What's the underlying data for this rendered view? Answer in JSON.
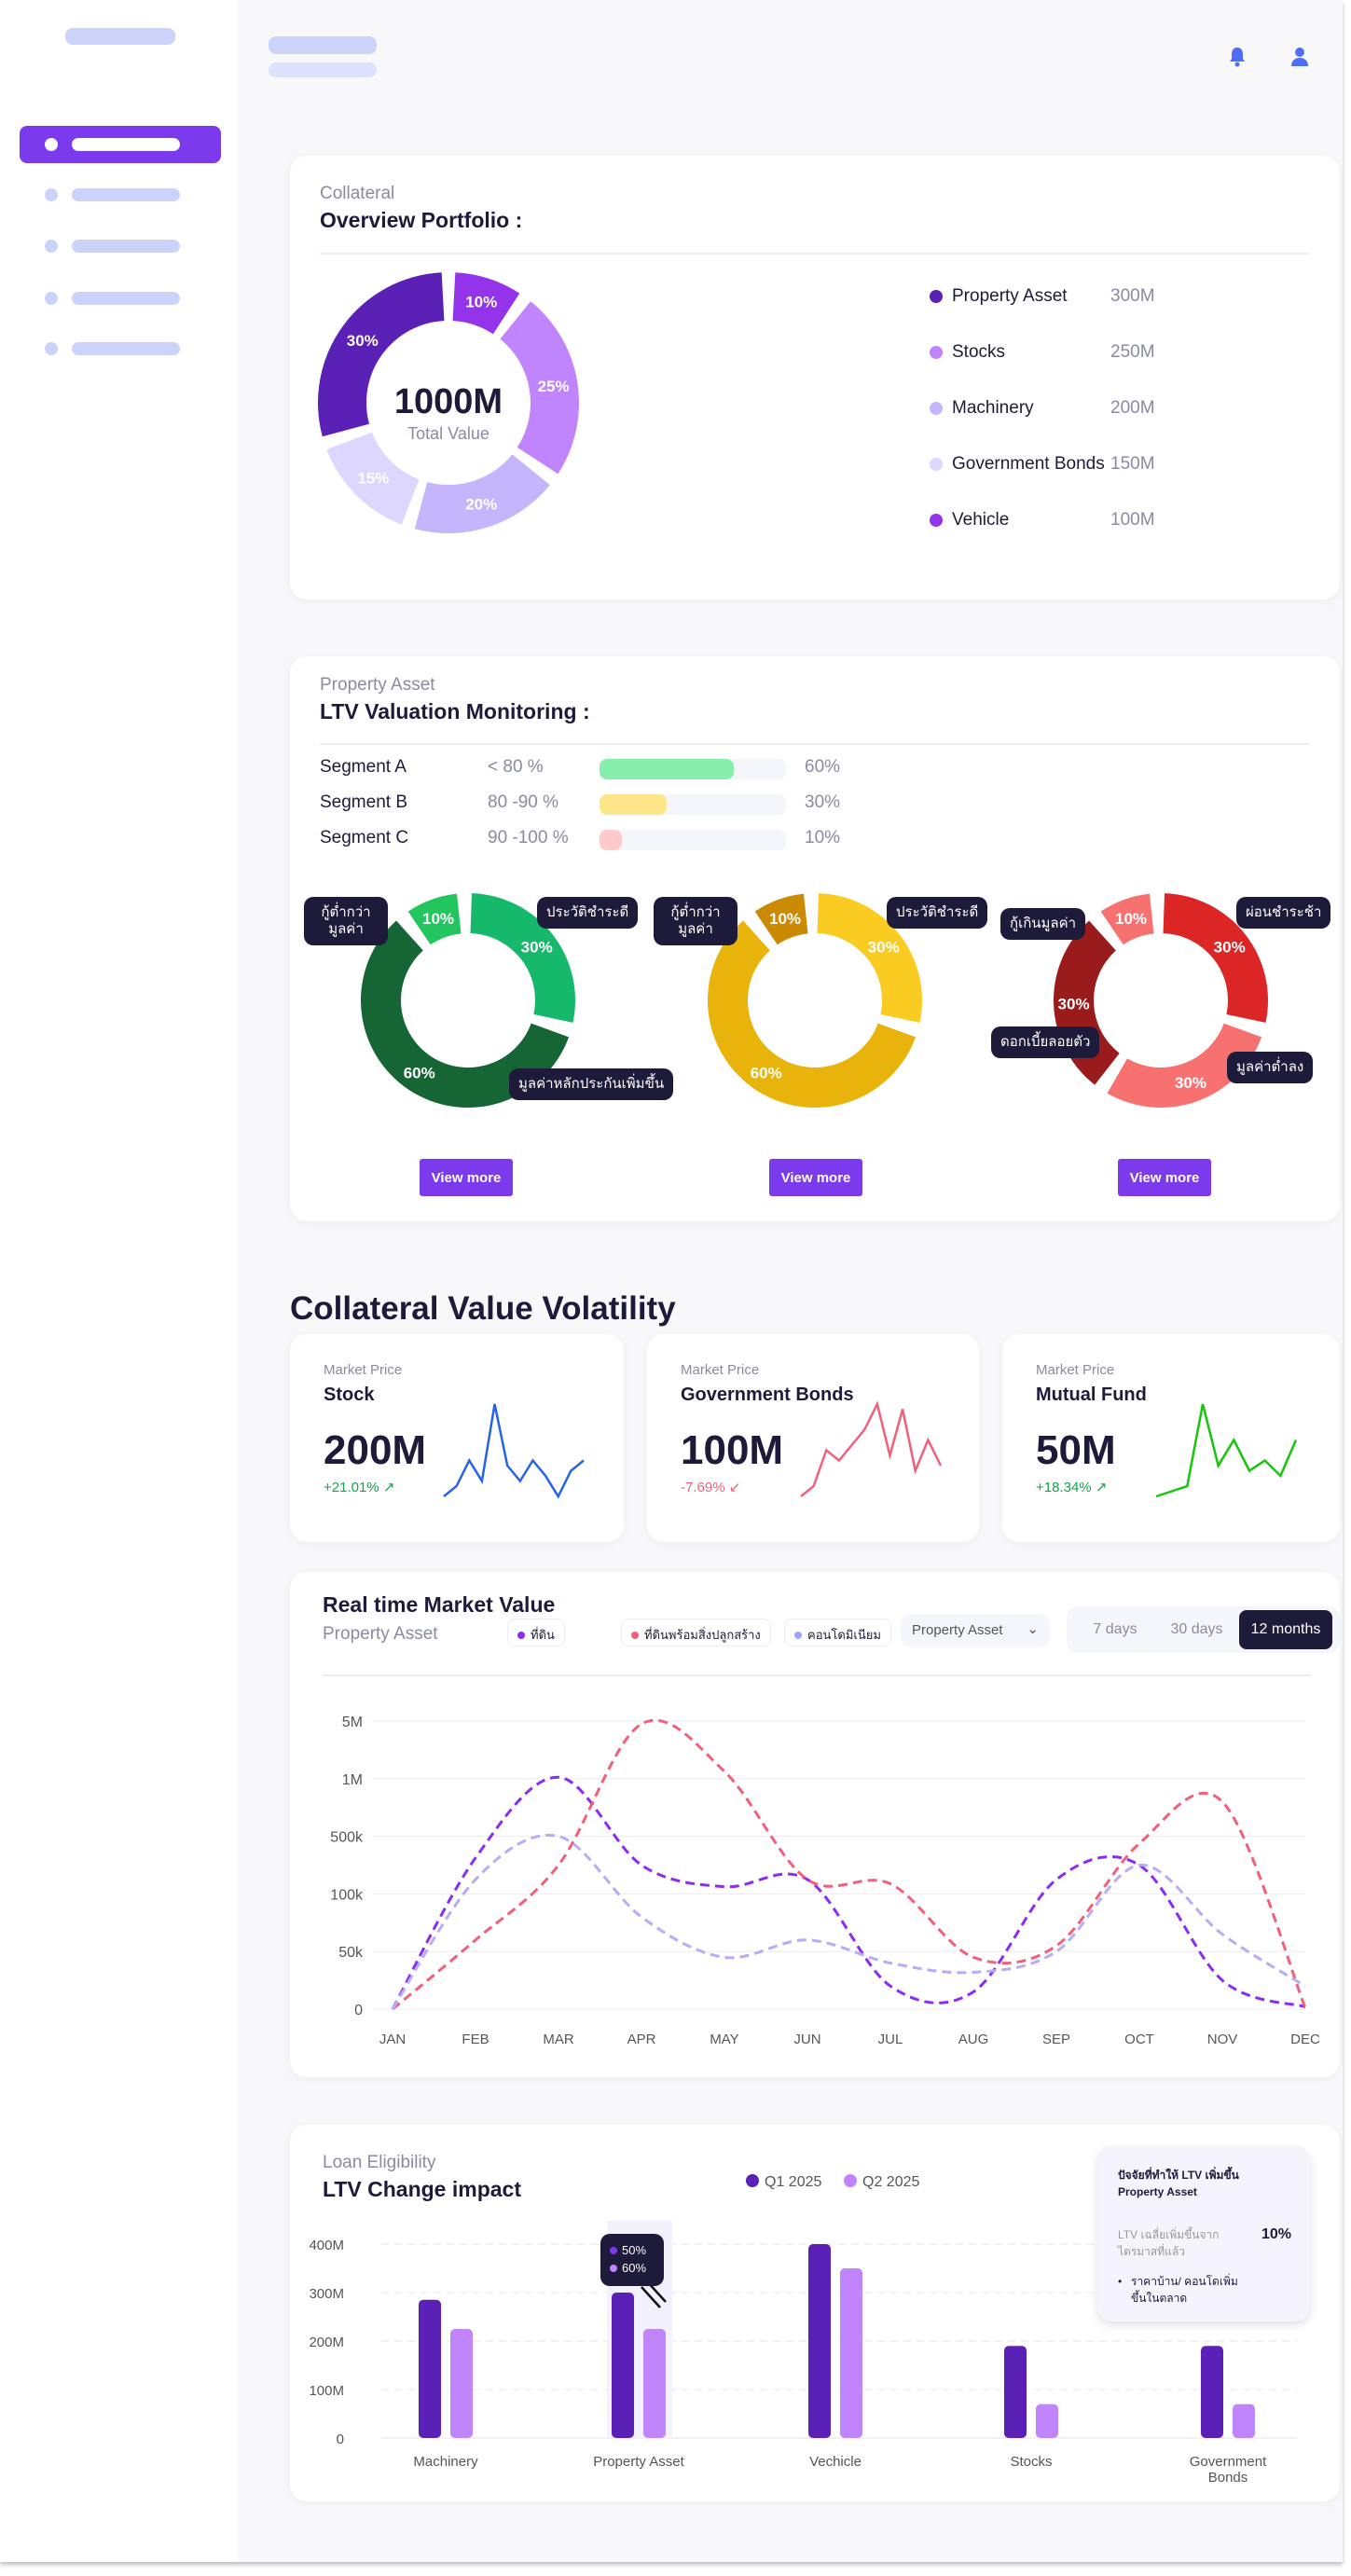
{
  "header": {
    "icons": [
      "bell-icon",
      "user-icon"
    ]
  },
  "portfolio": {
    "subtitle": "Collateral",
    "title": "Overview Portfolio :",
    "total": "1000M",
    "total_label": "Total Value",
    "items": [
      {
        "label": "Property Asset",
        "value": "300M",
        "pct": 30,
        "pct_label": "30%",
        "color": "#5b21b6"
      },
      {
        "label": "Stocks",
        "value": "250M",
        "pct": 25,
        "pct_label": "25%",
        "color": "#c084fc"
      },
      {
        "label": "Machinery",
        "value": "200M",
        "pct": 20,
        "pct_label": "20%",
        "color": "#c4b5fd"
      },
      {
        "label": "Government Bonds",
        "value": "150M",
        "pct": 15,
        "pct_label": "15%",
        "color": "#ddd6fe"
      },
      {
        "label": "Vehicle",
        "value": "100M",
        "pct": 10,
        "pct_label": "10%",
        "color": "#9333ea"
      }
    ]
  },
  "ltv": {
    "subtitle": "Property Asset",
    "title": "LTV Valuation Monitoring :",
    "segments": [
      {
        "label": "Segment A",
        "range": "< 80 %",
        "pct": 60,
        "pct_label": "60%",
        "color": "#86efac"
      },
      {
        "label": "Segment B",
        "range": "80 -90 %",
        "pct": 30,
        "pct_label": "30%",
        "color": "#fde68a"
      },
      {
        "label": "Segment C",
        "range": "90 -100 %",
        "pct": 10,
        "pct_label": "10%",
        "color": "#fecaca"
      }
    ],
    "view_more": "View more",
    "donuts": [
      {
        "slices": [
          {
            "pct": 10,
            "label": "10%",
            "color": "#22c55e"
          },
          {
            "pct": 30,
            "label": "30%",
            "color": "#16b86b"
          },
          {
            "pct": 60,
            "label": "60%",
            "color": "#166534"
          }
        ],
        "tags": [
          "กู้ต่ำกว่า มูลค่า",
          "ประวัติชำระดี",
          "มูลค่าหลักประกันเพิ่มขึ้น"
        ]
      },
      {
        "slices": [
          {
            "pct": 10,
            "label": "10%",
            "color": "#ca8a04"
          },
          {
            "pct": 30,
            "label": "30%",
            "color": "#facc22"
          },
          {
            "pct": 60,
            "label": "60%",
            "color": "#e8b30a"
          }
        ],
        "tags": [
          "กู้ต่ำกว่า มูลค่า",
          "ประวัติชำระดี"
        ]
      },
      {
        "slices": [
          {
            "pct": 10,
            "label": "10%",
            "color": "#f87171"
          },
          {
            "pct": 30,
            "label": "30%",
            "color": "#dc2626"
          },
          {
            "pct": 30,
            "label": "30%",
            "color": "#f87171"
          },
          {
            "pct": 30,
            "label": "30%",
            "color": "#991b1b"
          }
        ],
        "tags": [
          "กู้เกินมูลค่า",
          "ผ่อนชำระช้า",
          "มูลค่าต่ำลง",
          "ดอกเบี้ยลอยตัว"
        ]
      }
    ]
  },
  "volatility": {
    "title": "Collateral Value Volatility",
    "cards": [
      {
        "label": "Market Price",
        "name": "Stock",
        "value": "200M",
        "change": "+21.01%",
        "trend": "up",
        "color": "#2563eb",
        "change_color": "#16a34a",
        "spark": [
          2,
          4,
          9,
          5,
          20,
          8,
          5,
          9,
          6,
          2,
          7,
          9
        ]
      },
      {
        "label": "Market Price",
        "name": "Government Bonds",
        "value": "100M",
        "change": "-7.69%",
        "trend": "down",
        "color": "#f0607a",
        "change_color": "#f0607a",
        "spark": [
          2,
          4,
          11,
          9,
          12,
          15,
          20,
          10,
          19,
          7,
          13,
          8
        ]
      },
      {
        "label": "Market Price",
        "name": "Mutual Fund",
        "value": "50M",
        "change": "+18.34%",
        "trend": "up",
        "color": "#16c60c",
        "change_color": "#16a34a",
        "spark": [
          2,
          3,
          4,
          20,
          8,
          13,
          7,
          9,
          6,
          13
        ]
      }
    ]
  },
  "market": {
    "title": "Real time Market Value",
    "subtitle": "Property Asset",
    "filter_chips": [
      {
        "label": "ที่ดิน",
        "color": "#8b2cf5"
      },
      {
        "label": "ที่ดินพร้อมสิ่งปลูกสร้าง",
        "color": "#f0607a"
      },
      {
        "label": "คอนโดมิเนียม",
        "color": "#9aa5f5"
      }
    ],
    "select": "Property Asset",
    "tabs": [
      "7 days",
      "30 days",
      "12 months"
    ],
    "active_tab": "12 months"
  },
  "loan": {
    "subtitle": "Loan Eligibility",
    "title": "LTV Change impact",
    "tooltip": [
      "50%",
      "60%"
    ],
    "info": {
      "title": "ปัจจัยที่ทำให้ LTV เพิ่มขึ้น",
      "asset": "Property Asset",
      "metric": "LTV เฉลี่ยเพิ่มขึ้นจาก ไตรมาสที่แล้ว",
      "metric_value": "10%",
      "bullet": "ราคาบ้าน/ คอนโดเพิ่มขึ้นในตลาด"
    }
  },
  "chart_data": [
    {
      "type": "line",
      "title": "Real time Market Value",
      "categories": [
        "JAN",
        "FEB",
        "MAR",
        "APR",
        "MAY",
        "JUN",
        "JUL",
        "AUG",
        "SEP",
        "OCT",
        "NOV",
        "DEC"
      ],
      "y_ticks": [
        "0",
        "50k",
        "100k",
        "500k",
        "1M",
        "5M"
      ],
      "y_tick_values": [
        0,
        50000,
        100000,
        500000,
        1000000,
        5000000
      ],
      "grid": true,
      "line_style": "dashed",
      "series": [
        {
          "name": "ที่ดิน",
          "color": "#8b2cf5",
          "values": [
            0,
            350000,
            1100000,
            300000,
            150000,
            200000,
            20000,
            15000,
            200000,
            300000,
            25000,
            2000
          ]
        },
        {
          "name": "ที่ดินพร้อมสิ่งปลูกสร้าง",
          "color": "#f0607a",
          "values": [
            0,
            60000,
            300000,
            4800000,
            1500000,
            200000,
            170000,
            45000,
            55000,
            450000,
            800000,
            1000
          ]
        },
        {
          "name": "คอนโดมิเนียม",
          "color": "#b8acf6",
          "values": [
            0,
            200000,
            500000,
            80000,
            45000,
            60000,
            40000,
            32000,
            50000,
            300000,
            65000,
            20000
          ]
        }
      ]
    },
    {
      "type": "bar",
      "title": "LTV Change impact",
      "categories": [
        "Machinery",
        "Property Asset",
        "Vechicle",
        "Stocks",
        "Government Bonds"
      ],
      "y_ticks": [
        "0",
        "100M",
        "200M",
        "300M",
        "400M"
      ],
      "ylim": [
        0,
        400
      ],
      "legend": "top",
      "series": [
        {
          "name": "Q1 2025",
          "color": "#5b21b6",
          "values": [
            285,
            300,
            400,
            190,
            190
          ]
        },
        {
          "name": "Q2 2025",
          "color": "#c084fc",
          "values": [
            225,
            225,
            350,
            70,
            70
          ]
        }
      ]
    }
  ]
}
